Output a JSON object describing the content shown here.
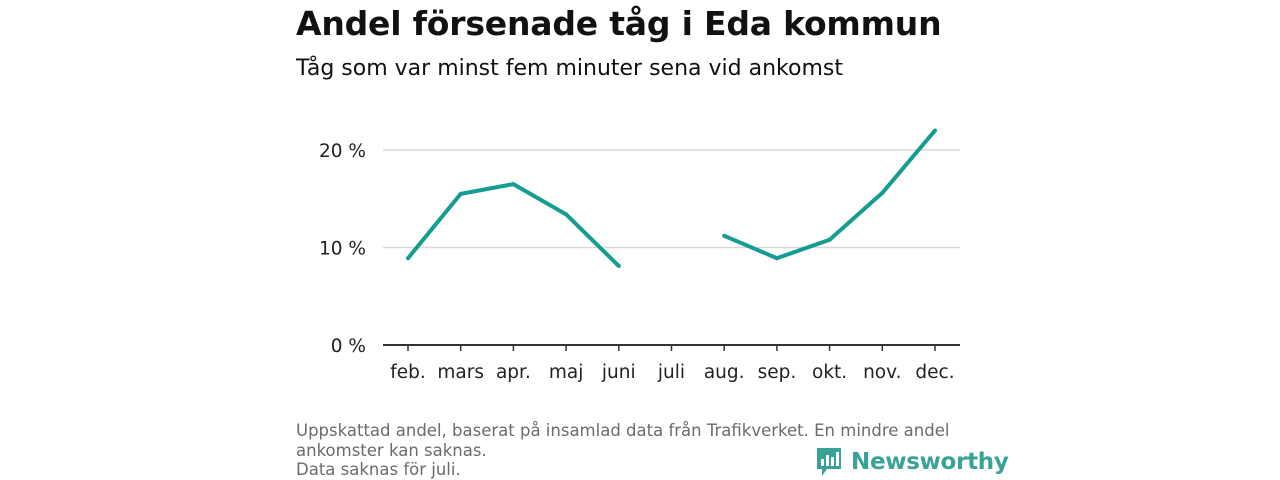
{
  "header": {
    "title": "Andel försenade tåg i Eda kommun",
    "subtitle": "Tåg som var minst fem minuter sena vid ankomst"
  },
  "footer": {
    "note_line1": "Uppskattad andel, baserat på insamlad data från Trafikverket. En mindre andel",
    "note_line2": "ankomster kan saknas.",
    "note_line3": "Data saknas för juli.",
    "brand": "Newsworthy",
    "logo_icon": "newsworthy-logo-icon"
  },
  "colors": {
    "line": "#159d91",
    "grid": "#d9d9d9",
    "axis": "#333333",
    "brand": "#3aa198"
  },
  "chart_data": {
    "type": "line",
    "categories": [
      "feb.",
      "mars",
      "apr.",
      "maj",
      "juni",
      "juli",
      "aug.",
      "sep.",
      "okt.",
      "nov.",
      "dec."
    ],
    "series": [
      {
        "values": [
          8.9,
          15.5,
          16.5,
          13.4,
          8.1,
          null,
          11.2,
          8.9,
          10.8,
          15.6,
          22.0
        ]
      }
    ],
    "yticks": [
      0,
      10,
      20
    ],
    "ytick_labels": [
      "0 %",
      "10 %",
      "20 %"
    ],
    "ylim": [
      0,
      24
    ],
    "grid": true,
    "xlabel": "",
    "ylabel": ""
  }
}
